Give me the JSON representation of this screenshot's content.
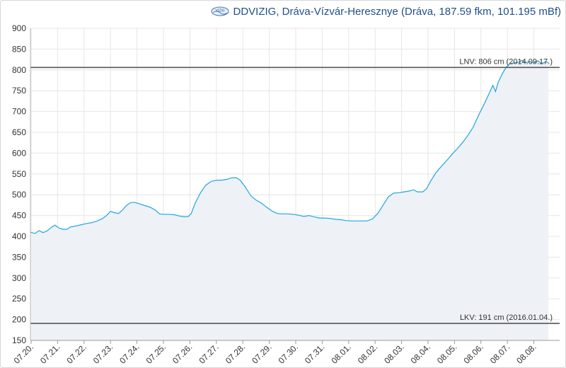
{
  "header": {
    "logo_text": "VIZIG",
    "title": "DDVIZIG, Dráva-Vízvár-Heresznye (Dráva, 187.59 fkm, 101.195 mBf)"
  },
  "colors": {
    "line": "#1ea7e1",
    "area": "#eef1f6",
    "grid": "#e6e6e6",
    "ref_line": "#555555",
    "title": "#1f4e8c"
  },
  "chart_data": {
    "type": "area",
    "title": "",
    "xlabel": "",
    "ylabel": "",
    "unit": "cm",
    "ylim": [
      150,
      900
    ],
    "yticks": [
      150,
      200,
      250,
      300,
      350,
      400,
      450,
      500,
      550,
      600,
      650,
      700,
      750,
      800,
      850,
      900
    ],
    "xlim": [
      0,
      19.7
    ],
    "xticks": [
      {
        "x": 0,
        "label": "07.20."
      },
      {
        "x": 1,
        "label": "07.21."
      },
      {
        "x": 2,
        "label": "07.22."
      },
      {
        "x": 3,
        "label": "07.23."
      },
      {
        "x": 4,
        "label": "07.24."
      },
      {
        "x": 5,
        "label": "07.25."
      },
      {
        "x": 6,
        "label": "07.26."
      },
      {
        "x": 7,
        "label": "07.27."
      },
      {
        "x": 8,
        "label": "07.28."
      },
      {
        "x": 9,
        "label": "07.29."
      },
      {
        "x": 10,
        "label": "07.30."
      },
      {
        "x": 11,
        "label": "07.31."
      },
      {
        "x": 12,
        "label": "08.01."
      },
      {
        "x": 13,
        "label": "08.02."
      },
      {
        "x": 14,
        "label": "08.03."
      },
      {
        "x": 15,
        "label": "08.04."
      },
      {
        "x": 16,
        "label": "08.05."
      },
      {
        "x": 17,
        "label": "08.06."
      },
      {
        "x": 18,
        "label": "08.07."
      },
      {
        "x": 19,
        "label": "08.08."
      }
    ],
    "grid": true,
    "reference_lines": [
      {
        "value": 806,
        "label": "LNV: 806 cm (2014.09.17.)"
      },
      {
        "value": 191,
        "label": "LKV: 191 cm (2016.01.04.)"
      }
    ],
    "series": [
      {
        "points": [
          [
            -0.05,
            410
          ],
          [
            0.15,
            407
          ],
          [
            0.3,
            414
          ],
          [
            0.45,
            409
          ],
          [
            0.6,
            413
          ],
          [
            0.75,
            421
          ],
          [
            0.9,
            427
          ],
          [
            1.05,
            420
          ],
          [
            1.2,
            417
          ],
          [
            1.35,
            417
          ],
          [
            1.5,
            423
          ],
          [
            1.7,
            425
          ],
          [
            1.9,
            428
          ],
          [
            2.1,
            431
          ],
          [
            2.3,
            433
          ],
          [
            2.5,
            437
          ],
          [
            2.7,
            443
          ],
          [
            2.85,
            450
          ],
          [
            3.0,
            460
          ],
          [
            3.15,
            457
          ],
          [
            3.3,
            455
          ],
          [
            3.45,
            463
          ],
          [
            3.6,
            474
          ],
          [
            3.75,
            481
          ],
          [
            3.9,
            482
          ],
          [
            4.1,
            478
          ],
          [
            4.3,
            474
          ],
          [
            4.5,
            470
          ],
          [
            4.7,
            463
          ],
          [
            4.85,
            454
          ],
          [
            5.0,
            453
          ],
          [
            5.2,
            453
          ],
          [
            5.4,
            452
          ],
          [
            5.6,
            449
          ],
          [
            5.8,
            447
          ],
          [
            5.95,
            448
          ],
          [
            6.05,
            455
          ],
          [
            6.2,
            480
          ],
          [
            6.4,
            505
          ],
          [
            6.6,
            523
          ],
          [
            6.8,
            532
          ],
          [
            7.0,
            535
          ],
          [
            7.2,
            535
          ],
          [
            7.4,
            537
          ],
          [
            7.6,
            541
          ],
          [
            7.75,
            541
          ],
          [
            7.9,
            535
          ],
          [
            8.1,
            518
          ],
          [
            8.3,
            498
          ],
          [
            8.5,
            487
          ],
          [
            8.7,
            480
          ],
          [
            8.9,
            470
          ],
          [
            9.1,
            461
          ],
          [
            9.3,
            455
          ],
          [
            9.5,
            454
          ],
          [
            9.7,
            454
          ],
          [
            9.9,
            453
          ],
          [
            10.1,
            451
          ],
          [
            10.3,
            448
          ],
          [
            10.5,
            450
          ],
          [
            10.7,
            447
          ],
          [
            10.9,
            444
          ],
          [
            11.1,
            444
          ],
          [
            11.3,
            443
          ],
          [
            11.5,
            441
          ],
          [
            11.7,
            440
          ],
          [
            11.9,
            438
          ],
          [
            12.1,
            437
          ],
          [
            12.3,
            437
          ],
          [
            12.5,
            437
          ],
          [
            12.7,
            437
          ],
          [
            12.9,
            442
          ],
          [
            13.1,
            455
          ],
          [
            13.3,
            475
          ],
          [
            13.5,
            495
          ],
          [
            13.7,
            504
          ],
          [
            13.9,
            505
          ],
          [
            14.1,
            507
          ],
          [
            14.3,
            509
          ],
          [
            14.45,
            512
          ],
          [
            14.6,
            507
          ],
          [
            14.8,
            507
          ],
          [
            14.95,
            515
          ],
          [
            15.1,
            533
          ],
          [
            15.3,
            553
          ],
          [
            15.5,
            568
          ],
          [
            15.7,
            582
          ],
          [
            15.9,
            597
          ],
          [
            16.1,
            610
          ],
          [
            16.3,
            625
          ],
          [
            16.5,
            642
          ],
          [
            16.7,
            662
          ],
          [
            16.9,
            690
          ],
          [
            17.1,
            715
          ],
          [
            17.3,
            742
          ],
          [
            17.45,
            763
          ],
          [
            17.55,
            748
          ],
          [
            17.65,
            770
          ],
          [
            17.8,
            790
          ],
          [
            17.95,
            806
          ],
          [
            18.1,
            815
          ],
          [
            18.25,
            817
          ],
          [
            18.4,
            818
          ],
          [
            18.55,
            823
          ],
          [
            18.7,
            818
          ],
          [
            18.85,
            820
          ],
          [
            19.0,
            817
          ],
          [
            19.15,
            822
          ],
          [
            19.3,
            815
          ],
          [
            19.45,
            820
          ],
          [
            19.55,
            817
          ]
        ]
      }
    ]
  }
}
